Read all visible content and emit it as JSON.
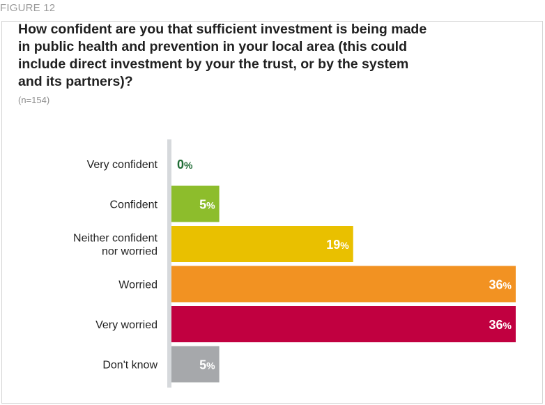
{
  "figure_label": "FIGURE 12",
  "chart_data": {
    "type": "bar",
    "orientation": "horizontal",
    "title": "How confident are you that sufficient investment is being made in public health and prevention in your local area (this could include direct investment by your the trust, or by the system and its partners)?",
    "subtitle": "(n=154)",
    "unit": "%",
    "xlim": [
      0,
      36
    ],
    "grid": false,
    "categories": [
      [
        "Very confident"
      ],
      [
        "Confident"
      ],
      [
        "Neither confident",
        "nor worried"
      ],
      [
        "Worried"
      ],
      [
        "Very worried"
      ],
      [
        "Don't know"
      ]
    ],
    "values": [
      0,
      5,
      19,
      36,
      36,
      5
    ],
    "colors": [
      "#1e6b34",
      "#8dbd2c",
      "#e9c000",
      "#f29222",
      "#c10040",
      "#a6a8ab"
    ],
    "zero_label_color": "#1e6b34",
    "label_color": "#ffffff",
    "axis_color": "#d6d9dc"
  }
}
